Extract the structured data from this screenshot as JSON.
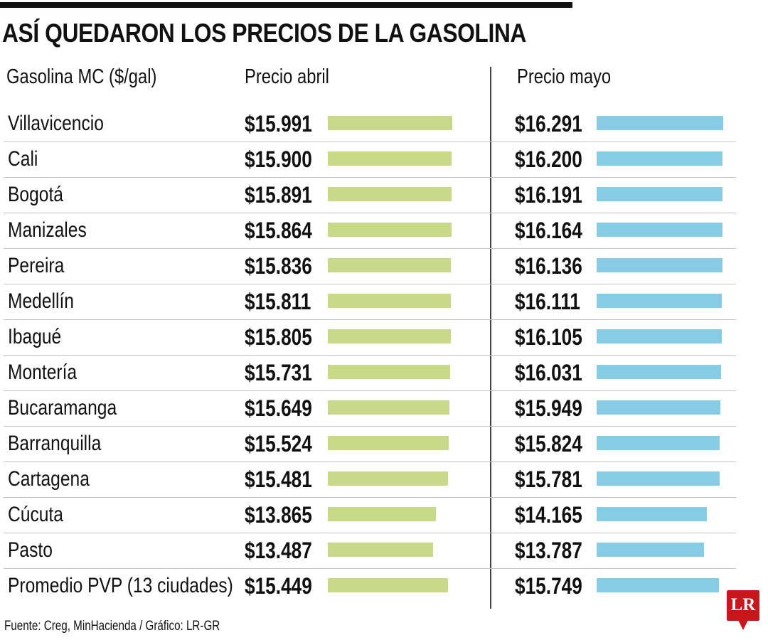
{
  "header": {
    "title": "ASÍ QUEDARON LOS PRECIOS DE LA GASOLINA"
  },
  "colors": {
    "abril": "#c8da8a",
    "mayo": "#86cce5",
    "logo": "#c8161d"
  },
  "chart_data": {
    "type": "bar",
    "title": "ASÍ QUEDARON LOS PRECIOS DE LA GASOLINA",
    "category_header": "Gasolina MC ($/gal)",
    "unit": "$/gal",
    "categories": [
      "Villavicencio",
      "Cali",
      "Bogotá",
      "Manizales",
      "Pereira",
      "Medellín",
      "Ibagué",
      "Montería",
      "Bucaramanga",
      "Barranquilla",
      "Cartagena",
      "Cúcuta",
      "Pasto",
      "Promedio PVP (13 ciudades)"
    ],
    "series": [
      {
        "name": "Precio abril",
        "color": "#c8da8a",
        "values": [
          15991,
          15900,
          15891,
          15864,
          15836,
          15811,
          15805,
          15731,
          15649,
          15524,
          15481,
          13865,
          13487,
          15449
        ],
        "labels": [
          "$15.991",
          "$15.900",
          "$15.891",
          "$15.864",
          "$15.836",
          "$15.811",
          "$15.805",
          "$15.731",
          "$15.649",
          "$15.524",
          "$15.481",
          "$13.865",
          "$13.487",
          "$15.449"
        ]
      },
      {
        "name": "Precio mayo",
        "color": "#86cce5",
        "values": [
          16291,
          16200,
          16191,
          16164,
          16136,
          16111,
          16105,
          16031,
          15949,
          15824,
          15781,
          14165,
          13787,
          15749
        ],
        "labels": [
          "$16.291",
          "$16.200",
          "$16.191",
          "$16.164",
          "$16.136",
          "$16.111",
          "$16.105",
          "$16.031",
          "$15.949",
          "$15.824",
          "$15.781",
          "$14.165",
          "$13.787",
          "$15.749"
        ]
      }
    ],
    "xlim": [
      0,
      16291
    ],
    "grid": false,
    "legend": "column headers (top)"
  },
  "footer": {
    "source": "Fuente: Creg, MinHacienda / Gráfico: LR-GR",
    "logo_text": "LR"
  }
}
